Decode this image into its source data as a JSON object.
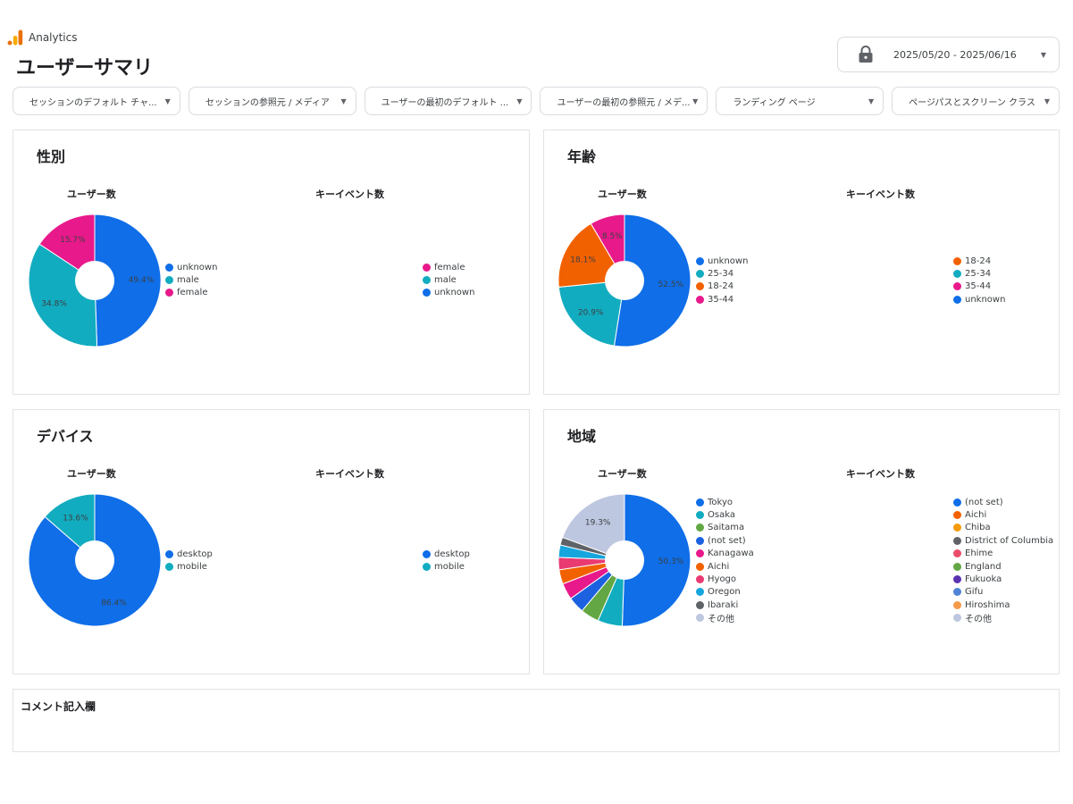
{
  "app": {
    "name": "Analytics",
    "page_title": "ユーザーサマリ"
  },
  "date_range": {
    "label": "2025/05/20 - 2025/06/16"
  },
  "filters": [
    "セッションのデフォルト チャ...",
    "セッションの参照元 / メディア",
    "ユーザーの最初のデフォルト ...",
    "ユーザーの最初の参照元 / メデ...",
    "ランディング ページ",
    "ページパスとスクリーン クラス"
  ],
  "cards": {
    "gender": {
      "title": "性別",
      "users_label": "ユーザー数",
      "events_label": "キーイベント数"
    },
    "age": {
      "title": "年齢",
      "users_label": "ユーザー数",
      "events_label": "キーイベント数"
    },
    "device": {
      "title": "デバイス",
      "users_label": "ユーザー数",
      "events_label": "キーイベント数"
    },
    "region": {
      "title": "地域",
      "users_label": "ユーザー数",
      "events_label": "キーイベント数"
    }
  },
  "comment": {
    "title": "コメント記入欄"
  },
  "chart_data": [
    {
      "id": "gender",
      "type": "pie",
      "title": "性別 - ユーザー数",
      "slices": [
        {
          "label": "unknown",
          "value": 49.4,
          "color": "#0f6ee8",
          "show_label": "49.4%"
        },
        {
          "label": "male",
          "value": 34.8,
          "color": "#12acc0",
          "show_label": "34.8%"
        },
        {
          "label": "female",
          "value": 15.7,
          "color": "#e8198b",
          "show_label": "15.7%"
        }
      ],
      "event_legend": [
        {
          "label": "female",
          "color": "#e8198b"
        },
        {
          "label": "male",
          "color": "#12acc0"
        },
        {
          "label": "unknown",
          "color": "#0f6ee8"
        }
      ]
    },
    {
      "id": "age",
      "type": "pie",
      "title": "年齢 - ユーザー数",
      "slices": [
        {
          "label": "unknown",
          "value": 52.5,
          "color": "#0f6ee8",
          "show_label": "52.5%"
        },
        {
          "label": "25-34",
          "value": 20.9,
          "color": "#12acc0",
          "show_label": "20.9%"
        },
        {
          "label": "18-24",
          "value": 18.1,
          "color": "#f26100",
          "show_label": "18.1%"
        },
        {
          "label": "35-44",
          "value": 8.5,
          "color": "#e8198b",
          "show_label": "8.5%"
        }
      ],
      "event_legend": [
        {
          "label": "18-24",
          "color": "#f26100"
        },
        {
          "label": "25-34",
          "color": "#12acc0"
        },
        {
          "label": "35-44",
          "color": "#e8198b"
        },
        {
          "label": "unknown",
          "color": "#0f6ee8"
        }
      ]
    },
    {
      "id": "device",
      "type": "pie",
      "title": "デバイス - ユーザー数",
      "slices": [
        {
          "label": "desktop",
          "value": 86.4,
          "color": "#0f6ee8",
          "show_label": "86.4%"
        },
        {
          "label": "mobile",
          "value": 13.6,
          "color": "#12acc0",
          "show_label": "13.6%"
        }
      ],
      "event_legend": [
        {
          "label": "desktop",
          "color": "#0f6ee8"
        },
        {
          "label": "mobile",
          "color": "#12acc0"
        }
      ]
    },
    {
      "id": "region",
      "type": "pie",
      "title": "地域 - ユーザー数",
      "slices": [
        {
          "label": "Tokyo",
          "value": 50.3,
          "color": "#0f6ee8",
          "show_label": "50.3%"
        },
        {
          "label": "Osaka",
          "value": 6.0,
          "color": "#12acc0",
          "show_label": ""
        },
        {
          "label": "Saitama",
          "value": 4.5,
          "color": "#62a744",
          "show_label": ""
        },
        {
          "label": "(not set)",
          "value": 4.0,
          "color": "#1c62e0",
          "show_label": ""
        },
        {
          "label": "Kanagawa",
          "value": 4.0,
          "color": "#e8198b",
          "show_label": ""
        },
        {
          "label": "Aichi",
          "value": 3.5,
          "color": "#f26100",
          "show_label": ""
        },
        {
          "label": "Hyogo",
          "value": 3.0,
          "color": "#ea3a72",
          "show_label": ""
        },
        {
          "label": "Oregon",
          "value": 3.0,
          "color": "#16a5dd",
          "show_label": ""
        },
        {
          "label": "Ibaraki",
          "value": 1.9,
          "color": "#5f6368",
          "show_label": ""
        },
        {
          "label": "その他",
          "value": 19.3,
          "color": "#bec7e0",
          "show_label": "19.3%"
        }
      ],
      "event_legend": [
        {
          "label": "(not set)",
          "color": "#0f6ee8"
        },
        {
          "label": "Aichi",
          "color": "#f26100"
        },
        {
          "label": "Chiba",
          "color": "#f59b0b"
        },
        {
          "label": "District of Columbia",
          "color": "#5f6368"
        },
        {
          "label": "Ehime",
          "color": "#ea4c69"
        },
        {
          "label": "England",
          "color": "#62a744"
        },
        {
          "label": "Fukuoka",
          "color": "#5b33b0"
        },
        {
          "label": "Gifu",
          "color": "#4f83d6"
        },
        {
          "label": "Hiroshima",
          "color": "#f59a4a"
        },
        {
          "label": "その他",
          "color": "#bec7e0"
        }
      ]
    }
  ]
}
